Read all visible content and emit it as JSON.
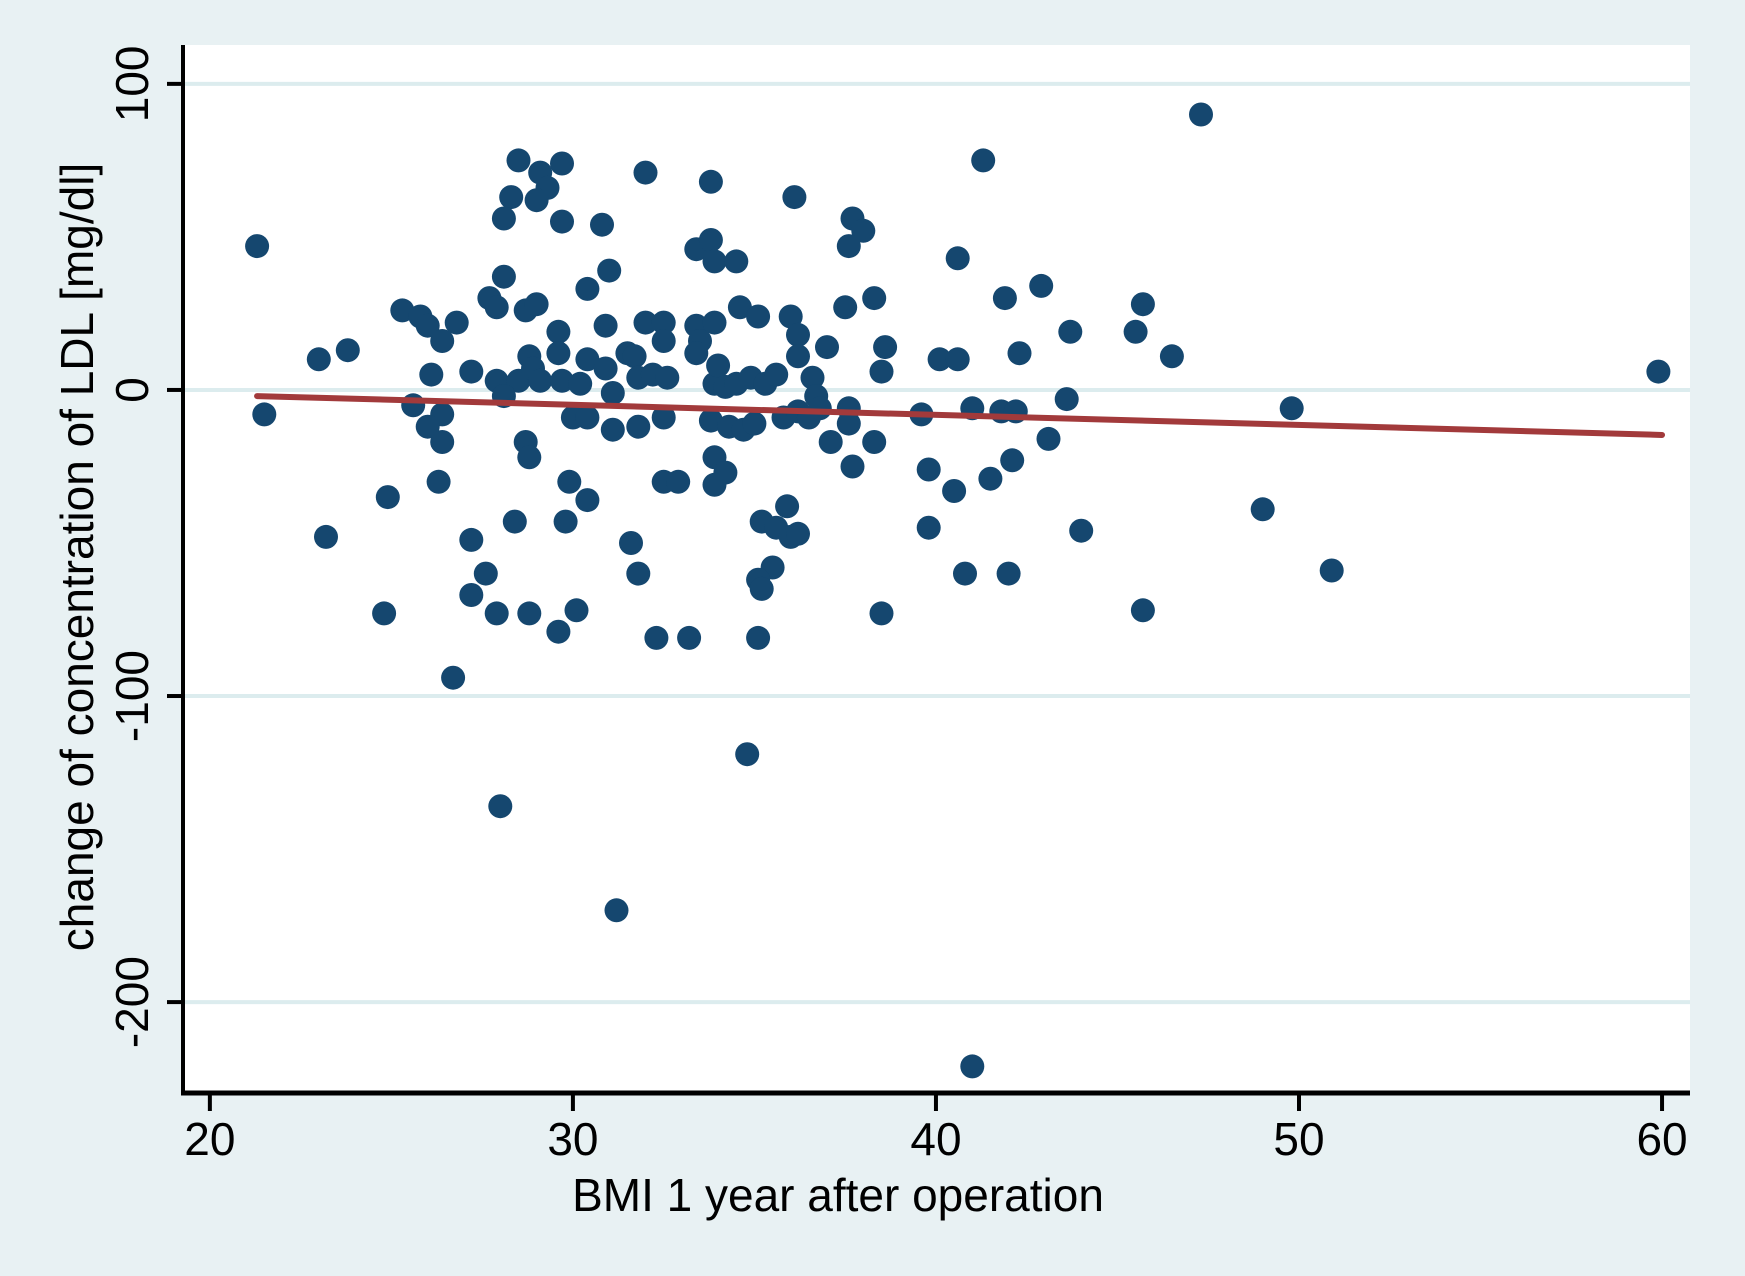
{
  "page": {
    "background_color": "#e8f1f3",
    "plot_background_color": "#ffffff",
    "gridline_color": "#dcecee",
    "axis_color": "#000000"
  },
  "chart_data": {
    "type": "scatter",
    "title": "",
    "xlabel": "BMI 1 year after operation",
    "ylabel": "change of concentration of LDL [mg/dl]",
    "x_ticks": [
      20,
      30,
      40,
      50,
      60
    ],
    "y_ticks": [
      100,
      0,
      -100,
      -200
    ],
    "xlim": [
      19.26,
      60.77
    ],
    "ylim": [
      -229.7,
      112.7
    ],
    "grid": "horizontal",
    "legend": "none",
    "marker_color": "#15476f",
    "marker_radius_px": 12,
    "fit_line_color": "#a23a3b",
    "fit_line": {
      "x1": 21.3,
      "y1": -2.0,
      "x2": 60.0,
      "y2": -14.7
    },
    "points": [
      [
        21.3,
        47
      ],
      [
        28.5,
        75
      ],
      [
        29.7,
        74
      ],
      [
        29.1,
        71
      ],
      [
        29.3,
        66
      ],
      [
        29.0,
        62
      ],
      [
        28.3,
        63
      ],
      [
        28.1,
        56
      ],
      [
        29.7,
        55
      ],
      [
        30.8,
        54
      ],
      [
        28.1,
        37
      ],
      [
        31.0,
        39
      ],
      [
        30.4,
        33
      ],
      [
        27.7,
        30
      ],
      [
        27.9,
        27
      ],
      [
        28.7,
        26
      ],
      [
        29.0,
        28
      ],
      [
        25.3,
        26
      ],
      [
        25.8,
        24
      ],
      [
        26.0,
        21
      ],
      [
        26.4,
        16
      ],
      [
        26.8,
        22
      ],
      [
        29.6,
        19
      ],
      [
        30.9,
        21
      ],
      [
        23.0,
        10
      ],
      [
        23.8,
        13
      ],
      [
        28.8,
        11
      ],
      [
        29.6,
        12
      ],
      [
        30.4,
        10
      ],
      [
        26.1,
        5
      ],
      [
        27.2,
        6
      ],
      [
        27.9,
        3
      ],
      [
        28.5,
        3
      ],
      [
        28.9,
        7
      ],
      [
        29.1,
        3
      ],
      [
        29.7,
        3
      ],
      [
        30.2,
        2
      ],
      [
        30.9,
        7
      ],
      [
        31.1,
        -1
      ],
      [
        21.5,
        -8
      ],
      [
        25.6,
        -5
      ],
      [
        26.4,
        -8
      ],
      [
        26.0,
        -12
      ],
      [
        26.4,
        -17
      ],
      [
        28.1,
        -2
      ],
      [
        30.0,
        -9
      ],
      [
        30.4,
        -9
      ],
      [
        31.1,
        -13
      ],
      [
        28.7,
        -17
      ],
      [
        28.8,
        -22
      ],
      [
        26.3,
        -30
      ],
      [
        24.9,
        -35
      ],
      [
        29.9,
        -30
      ],
      [
        30.4,
        -36
      ],
      [
        29.8,
        -43
      ],
      [
        28.4,
        -43
      ],
      [
        27.2,
        -49
      ],
      [
        23.2,
        -48
      ],
      [
        27.6,
        -60
      ],
      [
        27.2,
        -67
      ],
      [
        27.9,
        -73
      ],
      [
        28.8,
        -73
      ],
      [
        30.1,
        -72
      ],
      [
        29.6,
        -79
      ],
      [
        24.8,
        -73
      ],
      [
        26.7,
        -94
      ],
      [
        32.0,
        71
      ],
      [
        33.8,
        68
      ],
      [
        36.1,
        63
      ],
      [
        37.7,
        56
      ],
      [
        38.0,
        52
      ],
      [
        37.6,
        47
      ],
      [
        41.3,
        75
      ],
      [
        33.4,
        46
      ],
      [
        33.8,
        49
      ],
      [
        33.9,
        42
      ],
      [
        34.5,
        42
      ],
      [
        40.6,
        43
      ],
      [
        41.9,
        30
      ],
      [
        42.9,
        34
      ],
      [
        34.6,
        27
      ],
      [
        35.1,
        24
      ],
      [
        36.0,
        24
      ],
      [
        37.5,
        27
      ],
      [
        38.3,
        30
      ],
      [
        32.0,
        22
      ],
      [
        32.5,
        22
      ],
      [
        31.5,
        12
      ],
      [
        31.7,
        11
      ],
      [
        32.5,
        16
      ],
      [
        33.4,
        21
      ],
      [
        33.5,
        16
      ],
      [
        33.9,
        22
      ],
      [
        33.4,
        12
      ],
      [
        36.2,
        18
      ],
      [
        36.2,
        11
      ],
      [
        37.0,
        14
      ],
      [
        38.6,
        14
      ],
      [
        40.1,
        10
      ],
      [
        40.6,
        10
      ],
      [
        42.3,
        12
      ],
      [
        31.8,
        4
      ],
      [
        32.2,
        5
      ],
      [
        32.6,
        4
      ],
      [
        33.9,
        2
      ],
      [
        34.0,
        8
      ],
      [
        34.2,
        1
      ],
      [
        34.5,
        2
      ],
      [
        34.9,
        4
      ],
      [
        35.3,
        2
      ],
      [
        35.6,
        5
      ],
      [
        36.6,
        4
      ],
      [
        36.7,
        -2
      ],
      [
        38.5,
        6
      ],
      [
        32.5,
        -9
      ],
      [
        31.8,
        -12
      ],
      [
        33.8,
        -10
      ],
      [
        34.3,
        -12
      ],
      [
        34.7,
        -13
      ],
      [
        35.0,
        -11
      ],
      [
        35.8,
        -9
      ],
      [
        36.2,
        -7
      ],
      [
        36.5,
        -9
      ],
      [
        36.8,
        -6
      ],
      [
        37.6,
        -6
      ],
      [
        37.6,
        -11
      ],
      [
        39.6,
        -8
      ],
      [
        41.0,
        -6
      ],
      [
        41.8,
        -7
      ],
      [
        42.2,
        -7
      ],
      [
        43.1,
        -16
      ],
      [
        37.1,
        -17
      ],
      [
        38.3,
        -17
      ],
      [
        37.7,
        -25
      ],
      [
        39.8,
        -26
      ],
      [
        42.1,
        -23
      ],
      [
        41.5,
        -29
      ],
      [
        40.5,
        -33
      ],
      [
        33.9,
        -22
      ],
      [
        34.2,
        -27
      ],
      [
        33.9,
        -31
      ],
      [
        32.5,
        -30
      ],
      [
        32.9,
        -30
      ],
      [
        35.9,
        -38
      ],
      [
        35.2,
        -43
      ],
      [
        35.6,
        -45
      ],
      [
        36.0,
        -48
      ],
      [
        36.2,
        -47
      ],
      [
        39.8,
        -45
      ],
      [
        31.6,
        -50
      ],
      [
        31.8,
        -60
      ],
      [
        35.5,
        -58
      ],
      [
        35.1,
        -62
      ],
      [
        35.2,
        -65
      ],
      [
        40.8,
        -60
      ],
      [
        42.0,
        -60
      ],
      [
        38.5,
        -73
      ],
      [
        32.3,
        -81
      ],
      [
        33.2,
        -81
      ],
      [
        35.1,
        -81
      ],
      [
        47.3,
        90
      ],
      [
        45.7,
        28
      ],
      [
        43.7,
        19
      ],
      [
        45.5,
        19
      ],
      [
        46.5,
        11
      ],
      [
        43.6,
        -3
      ],
      [
        49.8,
        -6
      ],
      [
        49.0,
        -39
      ],
      [
        44.0,
        -46
      ],
      [
        50.9,
        -59
      ],
      [
        45.7,
        -72
      ],
      [
        59.9,
        6
      ],
      [
        28.0,
        -136
      ],
      [
        34.8,
        -119
      ],
      [
        31.2,
        -170
      ],
      [
        41.0,
        -221
      ]
    ]
  }
}
